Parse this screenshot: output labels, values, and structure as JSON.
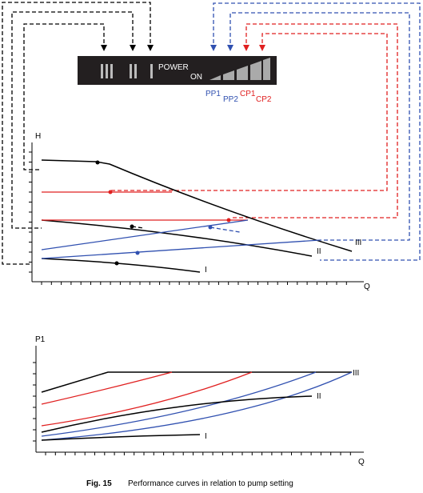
{
  "panel": {
    "speed_labels": [
      "III",
      "II",
      "I"
    ],
    "power": "POWER",
    "on": "ON"
  },
  "modes": {
    "pp1": "PP1",
    "pp2": "PP2",
    "cp1": "CP1",
    "cp2": "CP2"
  },
  "head_chart": {
    "y_label": "H",
    "x_label": "Q",
    "curve_labels": [
      "III",
      "II",
      "I"
    ]
  },
  "power_chart": {
    "y_label": "P1",
    "x_label": "Q",
    "curve_labels": [
      "III",
      "II",
      "I"
    ]
  },
  "caption": {
    "figure": "Fig. 15",
    "text": "Performance curves in relation to pump setting"
  }
}
